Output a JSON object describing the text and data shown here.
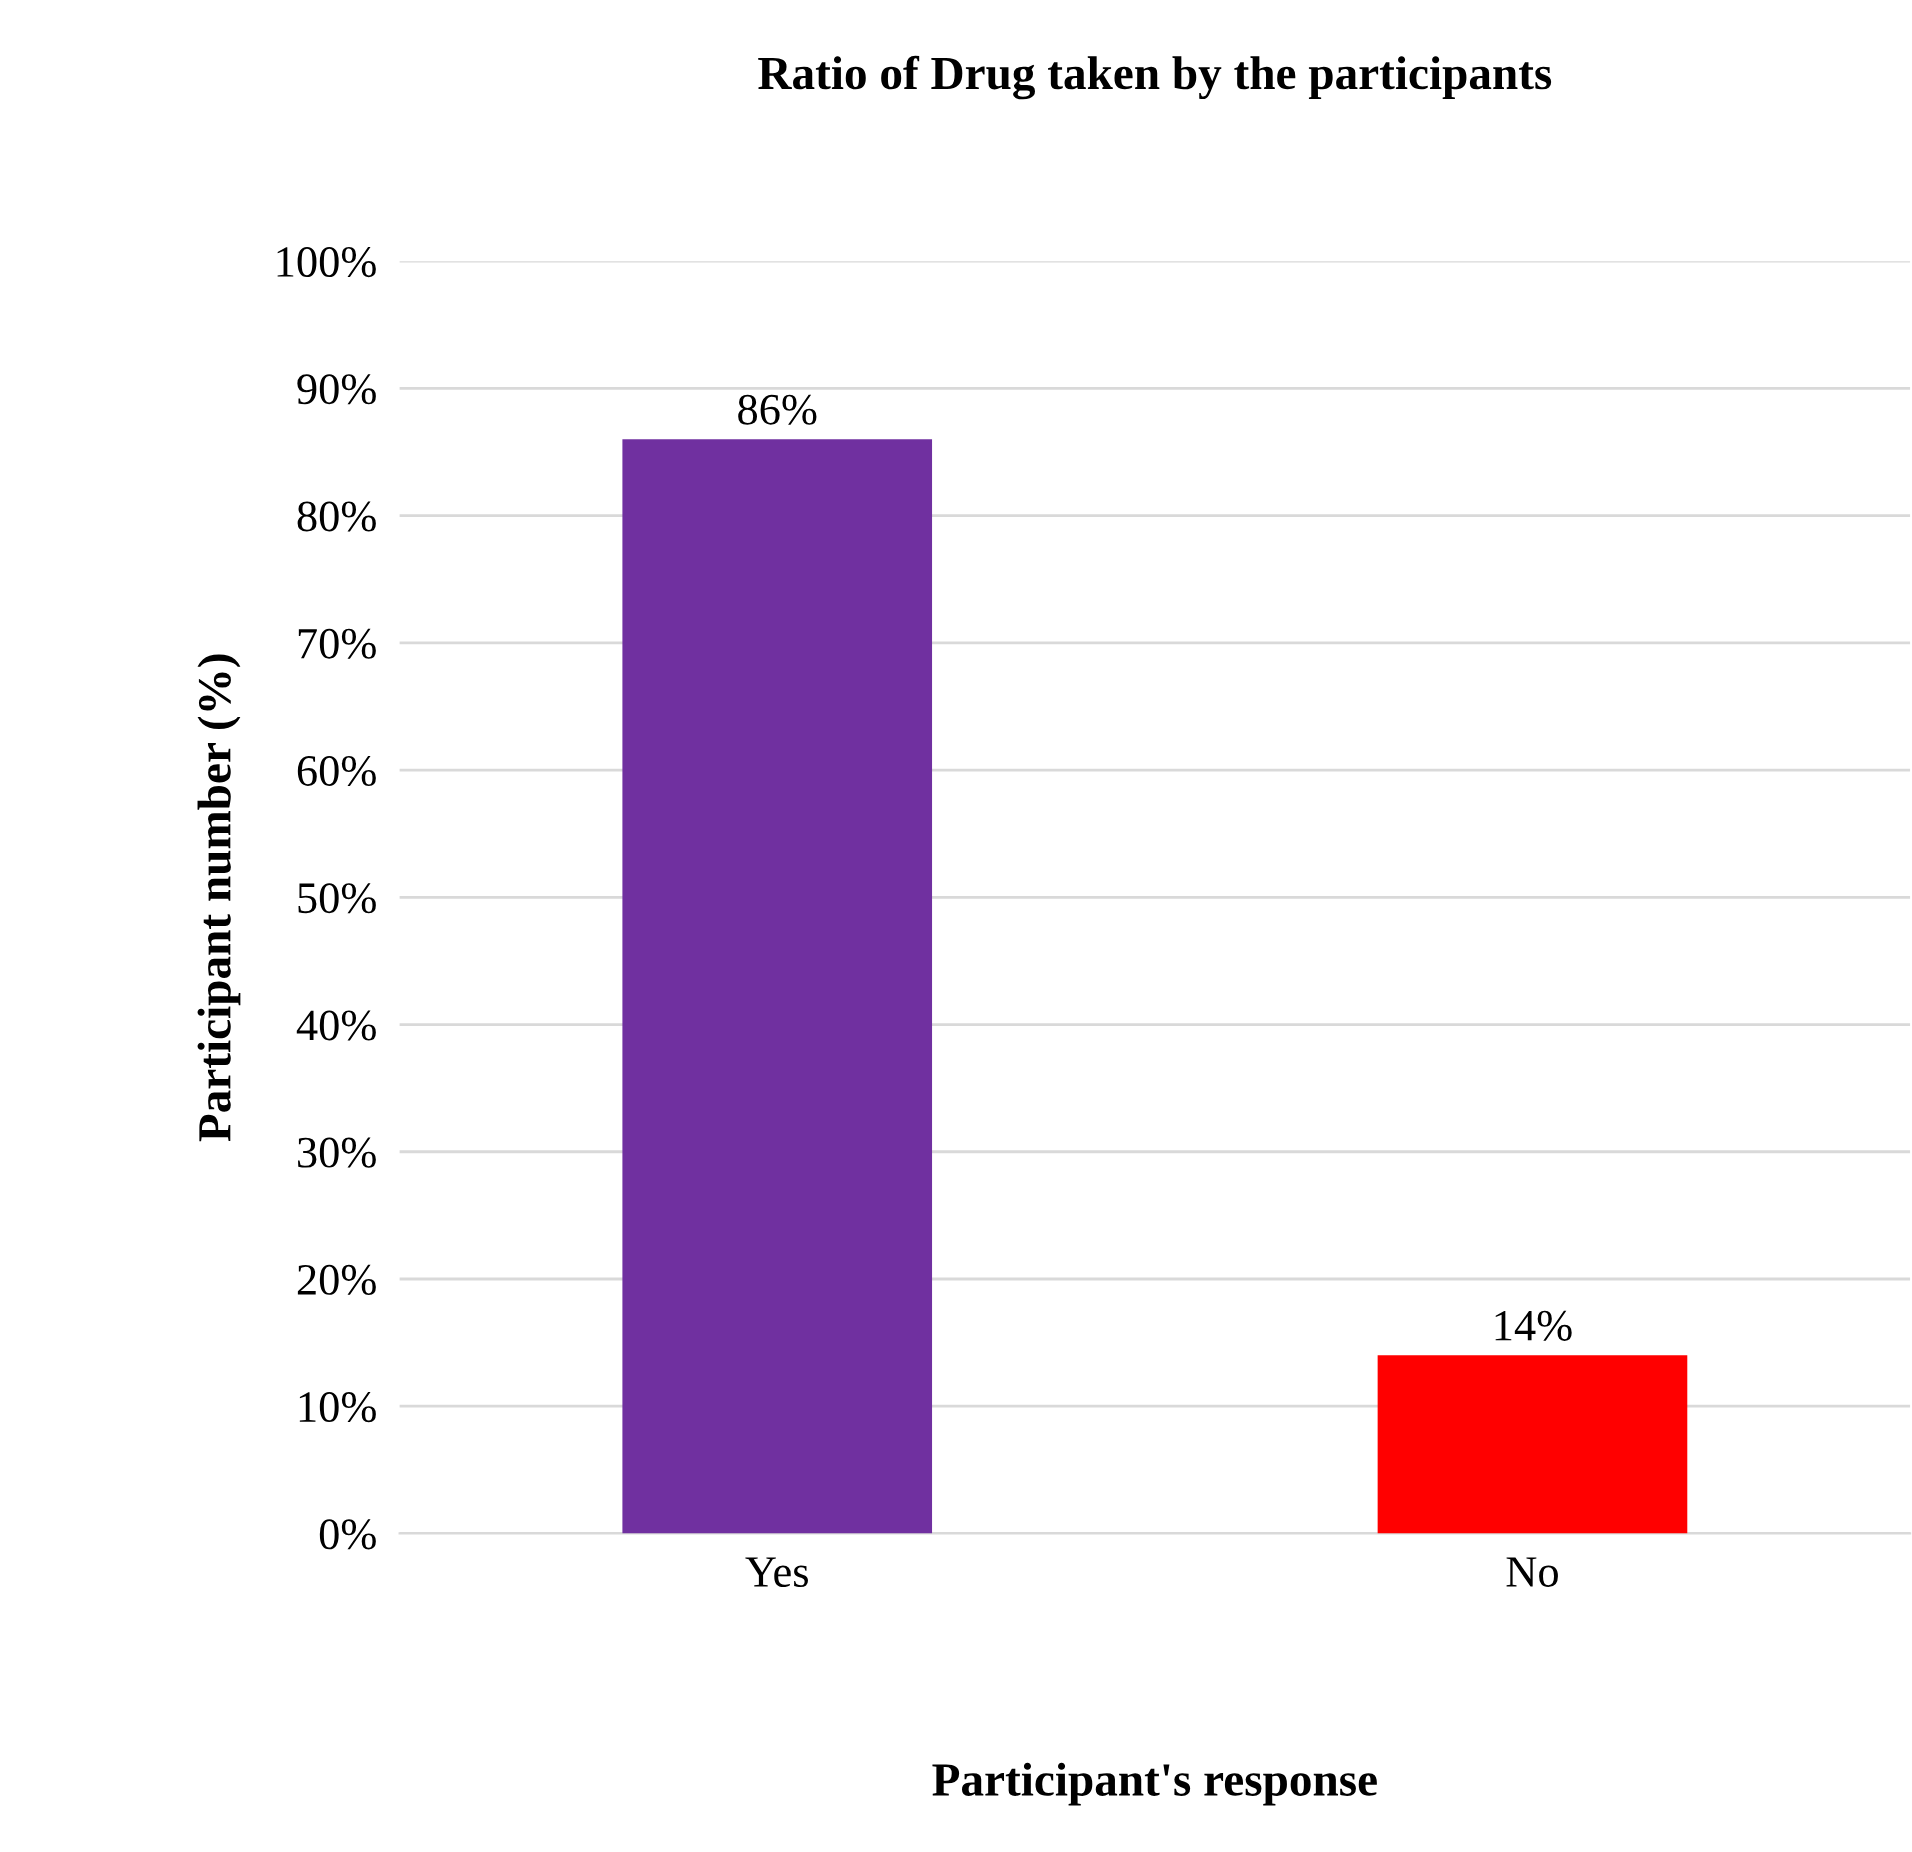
{
  "chart_data": {
    "type": "bar",
    "title": "Ratio of Drug taken by the participants",
    "xlabel": "Participant's response",
    "ylabel": "Participant number (%)",
    "categories": [
      "Yes",
      "No"
    ],
    "values": [
      86,
      14
    ],
    "colors": [
      "#7030a0",
      "#ff0000"
    ],
    "value_labels": [
      "86%",
      "14%"
    ],
    "ylim": [
      0,
      100
    ],
    "yticks": [
      {
        "value": 0,
        "label": "0%"
      },
      {
        "value": 10,
        "label": "10%"
      },
      {
        "value": 20,
        "label": "20%"
      },
      {
        "value": 30,
        "label": "30%"
      },
      {
        "value": 40,
        "label": "40%"
      },
      {
        "value": 50,
        "label": "50%"
      },
      {
        "value": 60,
        "label": "60%"
      },
      {
        "value": 70,
        "label": "70%"
      },
      {
        "value": 80,
        "label": "80%"
      },
      {
        "value": 90,
        "label": "90%"
      },
      {
        "value": 100,
        "label": "100%"
      }
    ],
    "grid": "y",
    "legend": false
  }
}
